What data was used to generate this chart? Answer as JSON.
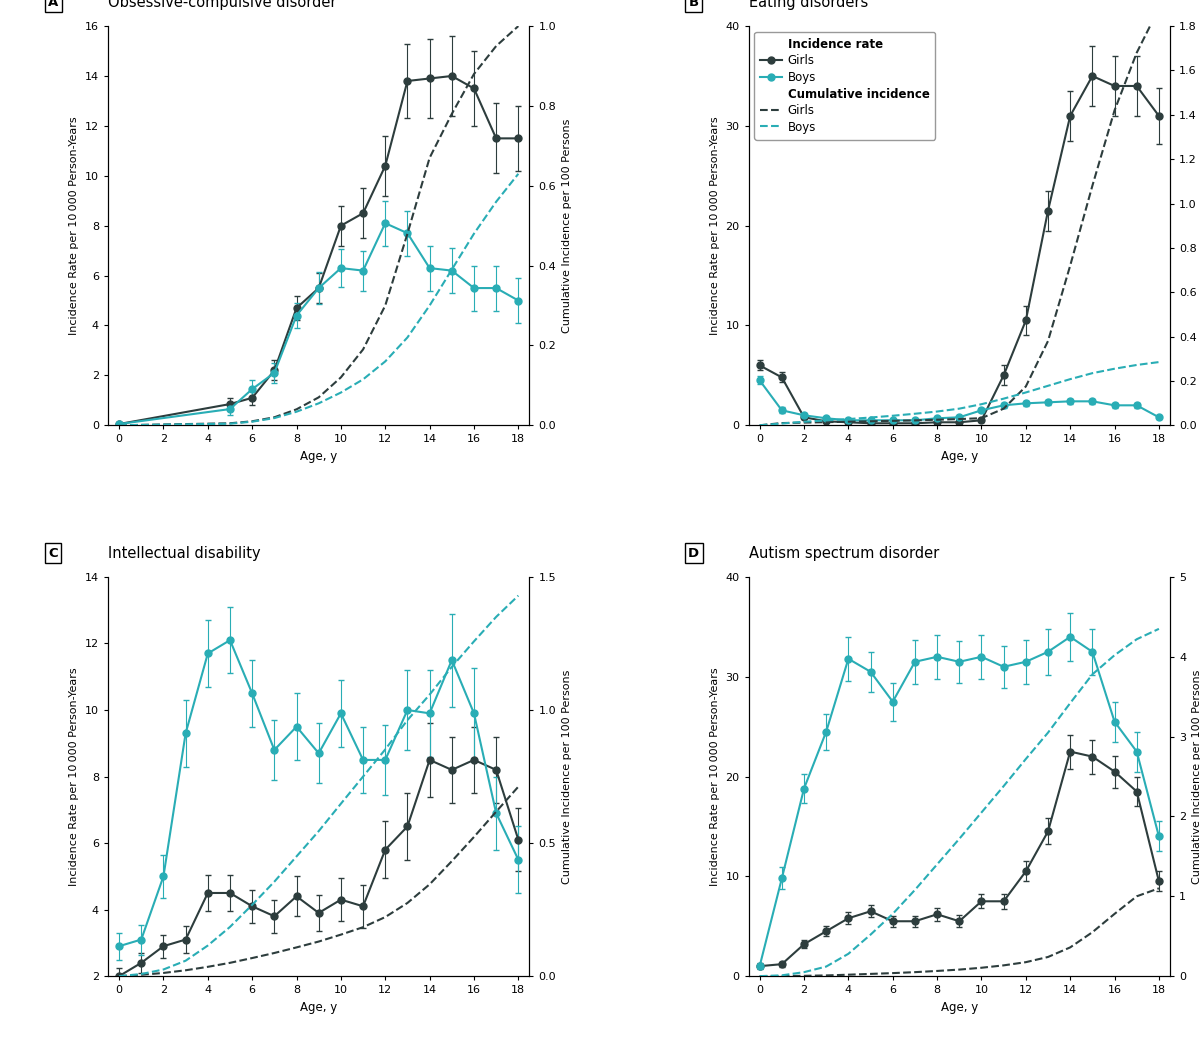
{
  "panels": [
    {
      "label": "A",
      "title": "Obsessive-compulsive disorder",
      "ylim_left": [
        0,
        16
      ],
      "ylim_right": [
        0,
        1.0
      ],
      "yticks_left": [
        0,
        2,
        4,
        6,
        8,
        10,
        12,
        14,
        16
      ],
      "yticks_right": [
        0,
        0.2,
        0.4,
        0.6,
        0.8,
        1.0
      ],
      "xlim": [
        -0.5,
        18.5
      ],
      "xticks": [
        0,
        2,
        4,
        6,
        8,
        10,
        12,
        14,
        16,
        18
      ],
      "girls_x": [
        0,
        5,
        6,
        7,
        8,
        9,
        10,
        11,
        12,
        13,
        14,
        15,
        16,
        17,
        18
      ],
      "girls_y": [
        0.05,
        0.85,
        1.1,
        2.2,
        4.7,
        5.5,
        8.0,
        8.5,
        10.4,
        13.8,
        13.9,
        14.0,
        13.5,
        11.5,
        11.5
      ],
      "girls_yerr": [
        0.05,
        0.25,
        0.3,
        0.4,
        0.5,
        0.6,
        0.8,
        1.0,
        1.2,
        1.5,
        1.6,
        1.6,
        1.5,
        1.4,
        1.3
      ],
      "boys_x": [
        0,
        5,
        6,
        7,
        8,
        9,
        10,
        11,
        12,
        13,
        14,
        15,
        16,
        17,
        18
      ],
      "boys_y": [
        0.05,
        0.65,
        1.45,
        2.1,
        4.4,
        5.5,
        6.3,
        6.2,
        8.1,
        7.7,
        6.3,
        6.2,
        5.5,
        5.5,
        5.0
      ],
      "boys_yerr": [
        0.05,
        0.25,
        0.35,
        0.4,
        0.5,
        0.65,
        0.75,
        0.8,
        0.9,
        0.9,
        0.9,
        0.9,
        0.9,
        0.9,
        0.9
      ],
      "girls_cum_x": [
        0,
        5,
        6,
        7,
        8,
        9,
        10,
        11,
        12,
        13,
        14,
        15,
        16,
        17,
        18
      ],
      "girls_cum_y": [
        0,
        0.005,
        0.01,
        0.02,
        0.04,
        0.07,
        0.12,
        0.19,
        0.3,
        0.48,
        0.67,
        0.78,
        0.88,
        0.95,
        1.0
      ],
      "boys_cum_x": [
        0,
        5,
        6,
        7,
        8,
        9,
        10,
        11,
        12,
        13,
        14,
        15,
        16,
        17,
        18
      ],
      "boys_cum_y": [
        0,
        0.004,
        0.009,
        0.018,
        0.034,
        0.055,
        0.082,
        0.115,
        0.16,
        0.22,
        0.3,
        0.39,
        0.48,
        0.56,
        0.63
      ]
    },
    {
      "label": "B",
      "title": "Eating disorders",
      "ylim_left": [
        0,
        40
      ],
      "ylim_right": [
        0,
        1.8
      ],
      "yticks_left": [
        0,
        10,
        20,
        30,
        40
      ],
      "yticks_right": [
        0,
        0.2,
        0.4,
        0.6,
        0.8,
        1.0,
        1.2,
        1.4,
        1.6,
        1.8
      ],
      "xlim": [
        -0.5,
        18.5
      ],
      "xticks": [
        0,
        2,
        4,
        6,
        8,
        10,
        12,
        14,
        16,
        18
      ],
      "girls_x": [
        0,
        1,
        2,
        3,
        4,
        5,
        6,
        7,
        8,
        9,
        10,
        11,
        12,
        13,
        14,
        15,
        16,
        17,
        18
      ],
      "girls_y": [
        6.0,
        4.8,
        0.8,
        0.4,
        0.3,
        0.2,
        0.2,
        0.2,
        0.3,
        0.3,
        0.5,
        5.0,
        10.5,
        21.5,
        31.0,
        35.0,
        34.0,
        34.0,
        31.0
      ],
      "girls_yerr": [
        0.5,
        0.5,
        0.15,
        0.1,
        0.08,
        0.08,
        0.08,
        0.08,
        0.08,
        0.08,
        0.15,
        1.0,
        1.5,
        2.0,
        2.5,
        3.0,
        3.0,
        3.0,
        2.8
      ],
      "boys_x": [
        0,
        1,
        2,
        3,
        4,
        5,
        6,
        7,
        8,
        9,
        10,
        11,
        12,
        13,
        14,
        15,
        16,
        17,
        18
      ],
      "boys_y": [
        4.5,
        1.5,
        1.0,
        0.7,
        0.5,
        0.5,
        0.5,
        0.5,
        0.7,
        0.8,
        1.5,
        2.0,
        2.2,
        2.3,
        2.4,
        2.4,
        2.0,
        2.0,
        0.8
      ],
      "boys_yerr": [
        0.4,
        0.3,
        0.2,
        0.15,
        0.1,
        0.1,
        0.1,
        0.1,
        0.15,
        0.15,
        0.2,
        0.25,
        0.25,
        0.25,
        0.28,
        0.28,
        0.25,
        0.25,
        0.15
      ],
      "girls_cum_x": [
        0,
        1,
        2,
        3,
        4,
        5,
        6,
        7,
        8,
        9,
        10,
        11,
        12,
        13,
        14,
        15,
        16,
        17,
        18
      ],
      "girls_cum_y": [
        0,
        0.01,
        0.012,
        0.014,
        0.016,
        0.018,
        0.02,
        0.022,
        0.025,
        0.028,
        0.032,
        0.075,
        0.175,
        0.38,
        0.72,
        1.08,
        1.42,
        1.68,
        1.88
      ],
      "boys_cum_x": [
        0,
        1,
        2,
        3,
        4,
        5,
        6,
        7,
        8,
        9,
        10,
        11,
        12,
        13,
        14,
        15,
        16,
        17,
        18
      ],
      "boys_cum_y": [
        0,
        0.008,
        0.016,
        0.022,
        0.028,
        0.035,
        0.043,
        0.052,
        0.062,
        0.075,
        0.095,
        0.12,
        0.148,
        0.178,
        0.208,
        0.235,
        0.255,
        0.272,
        0.285
      ],
      "show_legend": true
    },
    {
      "label": "C",
      "title": "Intellectual disability",
      "ylim_left": [
        2,
        14
      ],
      "ylim_right": [
        0,
        1.5
      ],
      "yticks_left": [
        2,
        4,
        6,
        8,
        10,
        12,
        14
      ],
      "yticks_right": [
        0,
        0.5,
        1.0,
        1.5
      ],
      "xlim": [
        -0.5,
        18.5
      ],
      "xticks": [
        0,
        2,
        4,
        6,
        8,
        10,
        12,
        14,
        16,
        18
      ],
      "girls_x": [
        0,
        1,
        2,
        3,
        4,
        5,
        6,
        7,
        8,
        9,
        10,
        11,
        12,
        13,
        14,
        15,
        16,
        17,
        18
      ],
      "girls_y": [
        2.0,
        2.4,
        2.9,
        3.1,
        4.5,
        4.5,
        4.1,
        3.8,
        4.4,
        3.9,
        4.3,
        4.1,
        5.8,
        6.5,
        8.5,
        8.2,
        8.5,
        8.2,
        6.1
      ],
      "girls_yerr": [
        0.25,
        0.3,
        0.35,
        0.4,
        0.55,
        0.55,
        0.5,
        0.5,
        0.6,
        0.55,
        0.65,
        0.65,
        0.85,
        1.0,
        1.1,
        1.0,
        1.0,
        1.0,
        0.95
      ],
      "boys_x": [
        0,
        1,
        2,
        3,
        4,
        5,
        6,
        7,
        8,
        9,
        10,
        11,
        12,
        13,
        14,
        15,
        16,
        17,
        18
      ],
      "boys_y": [
        2.9,
        3.1,
        5.0,
        9.3,
        11.7,
        12.1,
        10.5,
        8.8,
        9.5,
        8.7,
        9.9,
        8.5,
        8.5,
        10.0,
        9.9,
        11.5,
        9.9,
        6.9,
        5.5
      ],
      "boys_yerr": [
        0.4,
        0.45,
        0.65,
        1.0,
        1.0,
        1.0,
        1.0,
        0.9,
        1.0,
        0.9,
        1.0,
        1.0,
        1.05,
        1.2,
        1.3,
        1.4,
        1.35,
        1.1,
        1.0
      ],
      "girls_cum_x": [
        0,
        1,
        2,
        3,
        4,
        5,
        6,
        7,
        8,
        9,
        10,
        11,
        12,
        13,
        14,
        15,
        16,
        17,
        18
      ],
      "girls_cum_y": [
        0,
        0.005,
        0.012,
        0.022,
        0.035,
        0.05,
        0.068,
        0.087,
        0.108,
        0.13,
        0.156,
        0.184,
        0.222,
        0.275,
        0.345,
        0.432,
        0.523,
        0.618,
        0.712
      ],
      "boys_cum_x": [
        0,
        1,
        2,
        3,
        4,
        5,
        6,
        7,
        8,
        9,
        10,
        11,
        12,
        13,
        14,
        15,
        16,
        17,
        18
      ],
      "boys_cum_y": [
        0,
        0.008,
        0.025,
        0.058,
        0.115,
        0.185,
        0.268,
        0.355,
        0.45,
        0.545,
        0.648,
        0.75,
        0.852,
        0.962,
        1.058,
        1.162,
        1.258,
        1.35,
        1.43
      ]
    },
    {
      "label": "D",
      "title": "Autism spectrum disorder",
      "ylim_left": [
        0,
        40
      ],
      "ylim_right": [
        0,
        5
      ],
      "yticks_left": [
        0,
        10,
        20,
        30,
        40
      ],
      "yticks_right": [
        0,
        1,
        2,
        3,
        4,
        5
      ],
      "xlim": [
        -0.5,
        18.5
      ],
      "xticks": [
        0,
        2,
        4,
        6,
        8,
        10,
        12,
        14,
        16,
        18
      ],
      "girls_x": [
        0,
        1,
        2,
        3,
        4,
        5,
        6,
        7,
        8,
        9,
        10,
        11,
        12,
        13,
        14,
        15,
        16,
        17,
        18
      ],
      "girls_y": [
        1.0,
        1.2,
        3.2,
        4.5,
        5.8,
        6.5,
        5.5,
        5.5,
        6.2,
        5.5,
        7.5,
        7.5,
        10.5,
        14.5,
        22.5,
        22.0,
        20.5,
        18.5,
        9.5
      ],
      "girls_yerr": [
        0.2,
        0.25,
        0.4,
        0.5,
        0.6,
        0.6,
        0.55,
        0.55,
        0.65,
        0.6,
        0.7,
        0.75,
        1.0,
        1.3,
        1.7,
        1.7,
        1.6,
        1.5,
        1.0
      ],
      "boys_x": [
        0,
        1,
        2,
        3,
        4,
        5,
        6,
        7,
        8,
        9,
        10,
        11,
        12,
        13,
        14,
        15,
        16,
        17,
        18
      ],
      "boys_y": [
        1.0,
        9.8,
        18.8,
        24.5,
        31.8,
        30.5,
        27.5,
        31.5,
        32.0,
        31.5,
        32.0,
        31.0,
        31.5,
        32.5,
        34.0,
        32.5,
        25.5,
        22.5,
        14.0
      ],
      "boys_yerr": [
        0.3,
        1.1,
        1.5,
        1.8,
        2.2,
        2.0,
        1.9,
        2.2,
        2.2,
        2.1,
        2.2,
        2.1,
        2.2,
        2.3,
        2.4,
        2.3,
        2.0,
        2.0,
        1.5
      ],
      "girls_cum_x": [
        0,
        1,
        2,
        3,
        4,
        5,
        6,
        7,
        8,
        9,
        10,
        11,
        12,
        13,
        14,
        15,
        16,
        17,
        18
      ],
      "girls_cum_y": [
        0,
        0.001,
        0.004,
        0.009,
        0.018,
        0.028,
        0.038,
        0.05,
        0.065,
        0.082,
        0.105,
        0.135,
        0.175,
        0.24,
        0.36,
        0.55,
        0.78,
        1.0,
        1.1
      ],
      "boys_cum_x": [
        0,
        1,
        2,
        3,
        4,
        5,
        6,
        7,
        8,
        9,
        10,
        11,
        12,
        13,
        14,
        15,
        16,
        17,
        18
      ],
      "boys_cum_y": [
        0,
        0.01,
        0.05,
        0.12,
        0.28,
        0.52,
        0.78,
        1.08,
        1.4,
        1.72,
        2.05,
        2.38,
        2.72,
        3.05,
        3.42,
        3.78,
        4.02,
        4.22,
        4.35
      ]
    }
  ],
  "girls_color": "#2d3d3d",
  "boys_color": "#29adb5",
  "marker_size": 5,
  "linewidth": 1.5,
  "capsize": 2.5,
  "elinewidth": 0.8,
  "ylabel_left": "Incidence Rate per 10 000 Person-Years",
  "ylabel_right": "Cumulative Incidence per 100 Persons",
  "xlabel": "Age, y",
  "background_color": "#ffffff",
  "fontsize_title": 10.5,
  "fontsize_label": 8.5,
  "fontsize_tick": 8,
  "fontsize_legend": 8.5,
  "legend_title_ir": "Incidence rate",
  "legend_title_ci": "Cumulative incidence"
}
